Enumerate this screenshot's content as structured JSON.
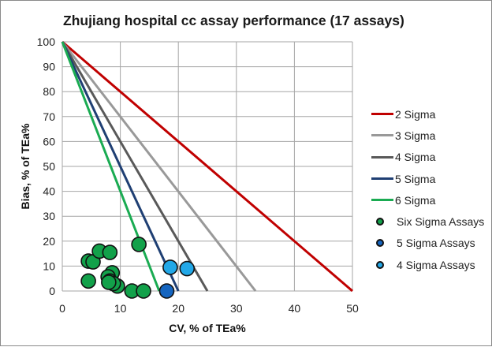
{
  "chart_data": {
    "type": "scatter",
    "title": "Zhujiang hospital cc assay performance (17 assays)",
    "xlabel": "CV, % of TEa%",
    "ylabel": "Bias, % of TEa%",
    "xlim": [
      0,
      50
    ],
    "ylim": [
      0,
      100
    ],
    "x_ticks": [
      "0",
      "10",
      "20",
      "30",
      "40",
      "50"
    ],
    "y_ticks": [
      "0",
      "10",
      "20",
      "30",
      "40",
      "50",
      "60",
      "70",
      "80",
      "90",
      "100"
    ],
    "grid": true,
    "legend_position": "right",
    "lines": [
      {
        "name": "2 Sigma",
        "color": "#c00000",
        "points": [
          [
            0,
            100
          ],
          [
            50,
            0
          ]
        ]
      },
      {
        "name": "3 Sigma",
        "color": "#999999",
        "points": [
          [
            0,
            100
          ],
          [
            33.3,
            0
          ]
        ]
      },
      {
        "name": "4 Sigma",
        "color": "#595959",
        "points": [
          [
            0,
            100
          ],
          [
            25,
            0
          ]
        ]
      },
      {
        "name": "5 Sigma",
        "color": "#1f3f73",
        "points": [
          [
            0,
            100
          ],
          [
            20,
            0
          ]
        ]
      },
      {
        "name": "6 Sigma",
        "color": "#1aab52",
        "points": [
          [
            0,
            100
          ],
          [
            16.7,
            0
          ]
        ]
      }
    ],
    "series": [
      {
        "name": "Six Sigma Assays",
        "color": "#12a14a",
        "points": [
          [
            4.5,
            4
          ],
          [
            4.5,
            12
          ],
          [
            5.3,
            11.7
          ],
          [
            6.4,
            16
          ],
          [
            8.2,
            15.5
          ],
          [
            13.2,
            18.7
          ],
          [
            8.6,
            7.3
          ],
          [
            7.9,
            5.7
          ],
          [
            8.2,
            4
          ],
          [
            9.5,
            2
          ],
          [
            8.8,
            3
          ],
          [
            12,
            0
          ],
          [
            14,
            0
          ],
          [
            8.0,
            3.5
          ]
        ]
      },
      {
        "name": "5 Sigma Assays",
        "color": "#1565c0",
        "points": [
          [
            18,
            0
          ]
        ]
      },
      {
        "name": "4 Sigma Assays",
        "color": "#22a8e8",
        "points": [
          [
            18.6,
            9.5
          ],
          [
            21.5,
            9
          ]
        ]
      }
    ]
  },
  "legend": {
    "items": [
      {
        "label": "2 Sigma",
        "kind": "line",
        "color": "#c00000"
      },
      {
        "label": "3 Sigma",
        "kind": "line",
        "color": "#999999"
      },
      {
        "label": "4 Sigma",
        "kind": "line",
        "color": "#595959"
      },
      {
        "label": "5 Sigma",
        "kind": "line",
        "color": "#1f3f73"
      },
      {
        "label": "6 Sigma",
        "kind": "line",
        "color": "#1aab52"
      },
      {
        "label": "Six Sigma Assays",
        "kind": "dot",
        "color": "#12a14a"
      },
      {
        "label": "5 Sigma Assays",
        "kind": "dot",
        "color": "#1565c0"
      },
      {
        "label": "4 Sigma Assays",
        "kind": "dot",
        "color": "#22a8e8"
      }
    ]
  }
}
